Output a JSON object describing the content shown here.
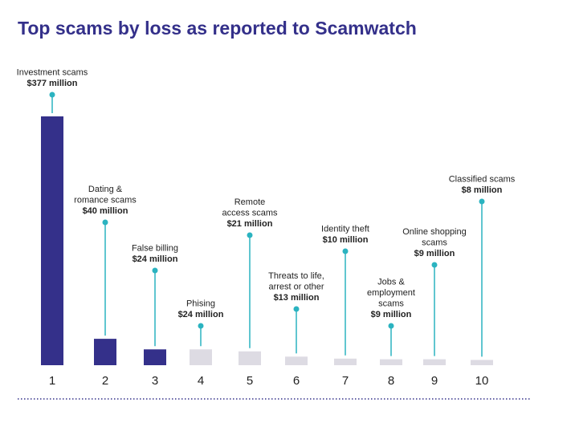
{
  "chart_data": {
    "type": "bar",
    "title": "Top scams by loss as reported to Scamwatch",
    "categories": [
      "1",
      "2",
      "3",
      "4",
      "5",
      "6",
      "7",
      "8",
      "9",
      "10"
    ],
    "names": [
      [
        "Investment scams"
      ],
      [
        "Dating &",
        "romance scams"
      ],
      [
        "False billing"
      ],
      [
        "Phising"
      ],
      [
        "Remote",
        "access scams"
      ],
      [
        "Threats to life,",
        "arrest or other"
      ],
      [
        "Identity theft"
      ],
      [
        "Jobs &",
        "employment",
        "scams"
      ],
      [
        "Online shopping",
        "scams"
      ],
      [
        "Classified scams"
      ]
    ],
    "values": [
      377,
      40,
      24,
      24,
      21,
      13,
      10,
      9,
      9,
      8
    ],
    "value_labels": [
      "$377 million",
      "$40 million",
      "$24 million",
      "$24 million",
      "$21 million",
      "$13 million",
      "$10 million",
      "$9 million",
      "$9 million",
      "$8 million"
    ],
    "colors": [
      "#34308a",
      "#34308a",
      "#34308a",
      "#dddbe3",
      "#dddbe3",
      "#dddbe3",
      "#dddbe3",
      "#dddbe3",
      "#dddbe3",
      "#dddbe3"
    ],
    "marker_color": "#2bb3c0"
  }
}
